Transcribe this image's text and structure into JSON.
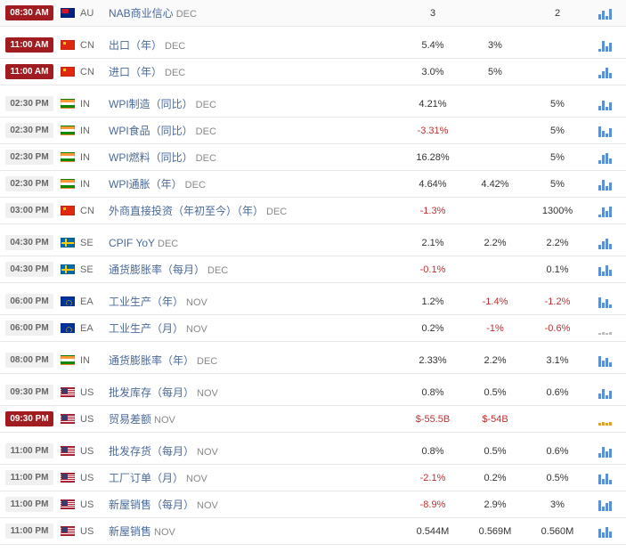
{
  "colors": {
    "highlight_bg": "#a01c20",
    "highlight_fg": "#ffffff",
    "normal_time_bg": "#f0f0f0",
    "normal_time_fg": "#666666",
    "link_color": "#4a6a9a",
    "negative_color": "#c03030",
    "bar_primary": "#5b8fd6",
    "bar_alt": "#e0a030",
    "border": "#e8e8e8"
  },
  "columns": [
    "time",
    "country",
    "event",
    "actual",
    "forecast",
    "previous",
    "chart"
  ],
  "groups": [
    {
      "rows": [
        {
          "time": "08:30 AM",
          "hl": true,
          "flag": "au",
          "code": "AU",
          "name": "NAB商业信心",
          "period": "DEC",
          "v1": "3",
          "v2": "",
          "v3": "2",
          "chart": [
            6,
            10,
            4,
            12
          ]
        }
      ]
    },
    {
      "rows": [
        {
          "time": "11:00 AM",
          "hl": true,
          "flag": "cn",
          "code": "CN",
          "name": "出口（年）",
          "period": "DEC",
          "v1": "5.4%",
          "v2": "3%",
          "v3": "",
          "chart": [
            3,
            12,
            6,
            10
          ]
        },
        {
          "time": "11:00 AM",
          "hl": true,
          "flag": "cn",
          "code": "CN",
          "name": "进口（年）",
          "period": "DEC",
          "v1": "3.0%",
          "v2": "5%",
          "v3": "",
          "chart": [
            4,
            8,
            12,
            6
          ]
        }
      ]
    },
    {
      "rows": [
        {
          "time": "02:30 PM",
          "hl": false,
          "flag": "in",
          "code": "IN",
          "name": "WPI制造（同比）",
          "period": "DEC",
          "v1": "4.21%",
          "v2": "",
          "v3": "5%",
          "chart": [
            5,
            11,
            4,
            9
          ]
        },
        {
          "time": "02:30 PM",
          "hl": false,
          "flag": "in",
          "code": "IN",
          "name": "WPI食品（同比）",
          "period": "DEC",
          "v1": "-3.31%",
          "v2": "",
          "v3": "5%",
          "chart": [
            12,
            7,
            4,
            10
          ]
        },
        {
          "time": "02:30 PM",
          "hl": false,
          "flag": "in",
          "code": "IN",
          "name": "WPI燃料（同比）",
          "period": "DEC",
          "v1": "16.28%",
          "v2": "",
          "v3": "5%",
          "chart": [
            4,
            10,
            12,
            6
          ]
        },
        {
          "time": "02:30 PM",
          "hl": false,
          "flag": "in",
          "code": "IN",
          "name": "WPI通胀（年）",
          "period": "DEC",
          "v1": "4.64%",
          "v2": "4.42%",
          "v3": "5%",
          "chart": [
            6,
            12,
            5,
            9
          ]
        },
        {
          "time": "03:00 PM",
          "hl": false,
          "flag": "cn",
          "code": "CN",
          "name": "外商直接投资（年初至今）（年）",
          "period": "DEC",
          "v1": "-1.3%",
          "v2": "",
          "v3": "1300%",
          "chart": [
            3,
            11,
            7,
            12
          ]
        }
      ]
    },
    {
      "rows": [
        {
          "time": "04:30 PM",
          "hl": false,
          "flag": "se",
          "code": "SE",
          "name": "CPIF YoY",
          "period": "DEC",
          "v1": "2.1%",
          "v2": "2.2%",
          "v3": "2.2%",
          "chart": [
            5,
            9,
            12,
            6
          ]
        },
        {
          "time": "04:30 PM",
          "hl": false,
          "flag": "se",
          "code": "SE",
          "name": "通货膨胀率（每月）",
          "period": "DEC",
          "v1": "-0.1%",
          "v2": "",
          "v3": "0.1%",
          "chart": [
            10,
            5,
            12,
            7
          ]
        }
      ]
    },
    {
      "rows": [
        {
          "time": "06:00 PM",
          "hl": false,
          "flag": "ea",
          "code": "EA",
          "name": "工业生产（年）",
          "period": "NOV",
          "v1": "1.2%",
          "v2": "-1.4%",
          "v3": "-1.2%",
          "chart": [
            12,
            6,
            10,
            4
          ]
        },
        {
          "time": "06:00 PM",
          "hl": false,
          "flag": "ea",
          "code": "EA",
          "name": "工业生产（月）",
          "period": "NOV",
          "v1": "0.2%",
          "v2": "-1%",
          "v3": "-0.6%",
          "chart": [
            2,
            3,
            2,
            3
          ],
          "chartStyle": "d"
        }
      ]
    },
    {
      "rows": [
        {
          "time": "08:00 PM",
          "hl": false,
          "flag": "in",
          "code": "IN",
          "name": "通货膨胀率（年）",
          "period": "DEC",
          "v1": "2.33%",
          "v2": "2.2%",
          "v3": "3.1%",
          "chart": [
            12,
            7,
            10,
            5
          ]
        }
      ]
    },
    {
      "rows": [
        {
          "time": "09:30 PM",
          "hl": false,
          "flag": "us",
          "code": "US",
          "name": "批发库存（每月）",
          "period": "NOV",
          "v1": "0.8%",
          "v2": "0.5%",
          "v3": "0.6%",
          "chart": [
            6,
            11,
            4,
            9
          ]
        },
        {
          "time": "09:30 PM",
          "hl": true,
          "flag": "us",
          "code": "US",
          "name": "贸易差额",
          "period": "NOV",
          "v1": "$-55.5B",
          "v2": "$-54B",
          "v3": "",
          "chart": [
            3,
            4,
            3,
            4
          ],
          "chartStyle": "c"
        }
      ]
    },
    {
      "rows": [
        {
          "time": "11:00 PM",
          "hl": false,
          "flag": "us",
          "code": "US",
          "name": "批发存货（每月）",
          "period": "NOV",
          "v1": "0.8%",
          "v2": "0.5%",
          "v3": "0.6%",
          "chart": [
            5,
            12,
            7,
            10
          ]
        },
        {
          "time": "11:00 PM",
          "hl": false,
          "flag": "us",
          "code": "US",
          "name": "工厂订单（月）",
          "period": "NOV",
          "v1": "-2.1%",
          "v2": "0.2%",
          "v3": "0.5%",
          "chart": [
            11,
            6,
            12,
            5
          ]
        },
        {
          "time": "11:00 PM",
          "hl": false,
          "flag": "us",
          "code": "US",
          "name": "新屋销售（每月）",
          "period": "NOV",
          "v1": "-8.9%",
          "v2": "2.9%",
          "v3": "3%",
          "chart": [
            12,
            5,
            9,
            11
          ]
        },
        {
          "time": "11:00 PM",
          "hl": false,
          "flag": "us",
          "code": "US",
          "name": "新屋销售",
          "period": "NOV",
          "v1": "0.544M",
          "v2": "0.569M",
          "v3": "0.560M",
          "chart": [
            10,
            6,
            12,
            7
          ]
        }
      ]
    }
  ]
}
